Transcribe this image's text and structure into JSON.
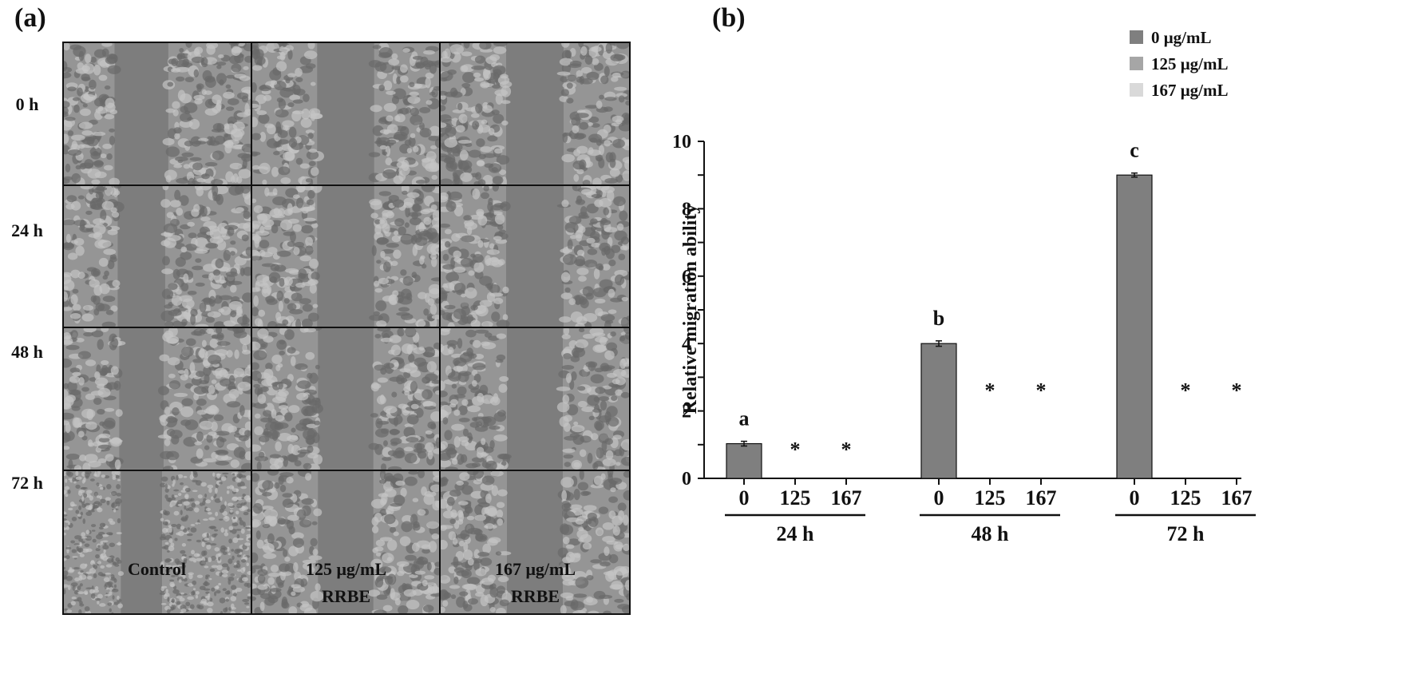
{
  "panel_a": {
    "label": "(a)",
    "rows": [
      "0 h",
      "24 h",
      "48 h",
      "72 h"
    ],
    "columns": [
      {
        "line1": "Control",
        "line2": ""
      },
      {
        "line1": "125 μg/mL",
        "line2": "RRBE"
      },
      {
        "line1": "167 μg/mL",
        "line2": "RRBE"
      }
    ]
  },
  "panel_b": {
    "label": "(b)"
  },
  "chart_data": {
    "type": "bar",
    "title": "",
    "ylabel": "Relative migration ability",
    "xlabel": "",
    "ylim": [
      0,
      10
    ],
    "yticks": [
      0,
      2,
      4,
      6,
      8,
      10
    ],
    "groups": [
      "24 h",
      "48 h",
      "72 h"
    ],
    "categories": [
      "0",
      "125",
      "167"
    ],
    "legend": {
      "placement": "top-right",
      "entries": [
        {
          "name": "0 μg/mL",
          "color": "#7f7f7f"
        },
        {
          "name": "125 μg/mL",
          "color": "#a6a6a6"
        },
        {
          "name": "167 μg/mL",
          "color": "#d9d9d9"
        }
      ]
    },
    "series": [
      {
        "name": "0 μg/mL",
        "color": "#7f7f7f",
        "values": [
          1.03,
          4.0,
          9.0
        ],
        "errors": [
          0.07,
          0.08,
          0.06
        ],
        "annotations": [
          "a",
          "b",
          "c"
        ]
      },
      {
        "name": "125 μg/mL",
        "color": "#a6a6a6",
        "values": [
          0,
          0,
          0
        ],
        "errors": [
          0,
          0,
          0
        ],
        "annotations": [
          "*",
          "*",
          "*"
        ]
      },
      {
        "name": "167 μg/mL",
        "color": "#d9d9d9",
        "values": [
          0,
          0,
          0
        ],
        "errors": [
          0,
          0,
          0
        ],
        "annotations": [
          "*",
          "*",
          "*"
        ]
      }
    ],
    "grid": false
  }
}
